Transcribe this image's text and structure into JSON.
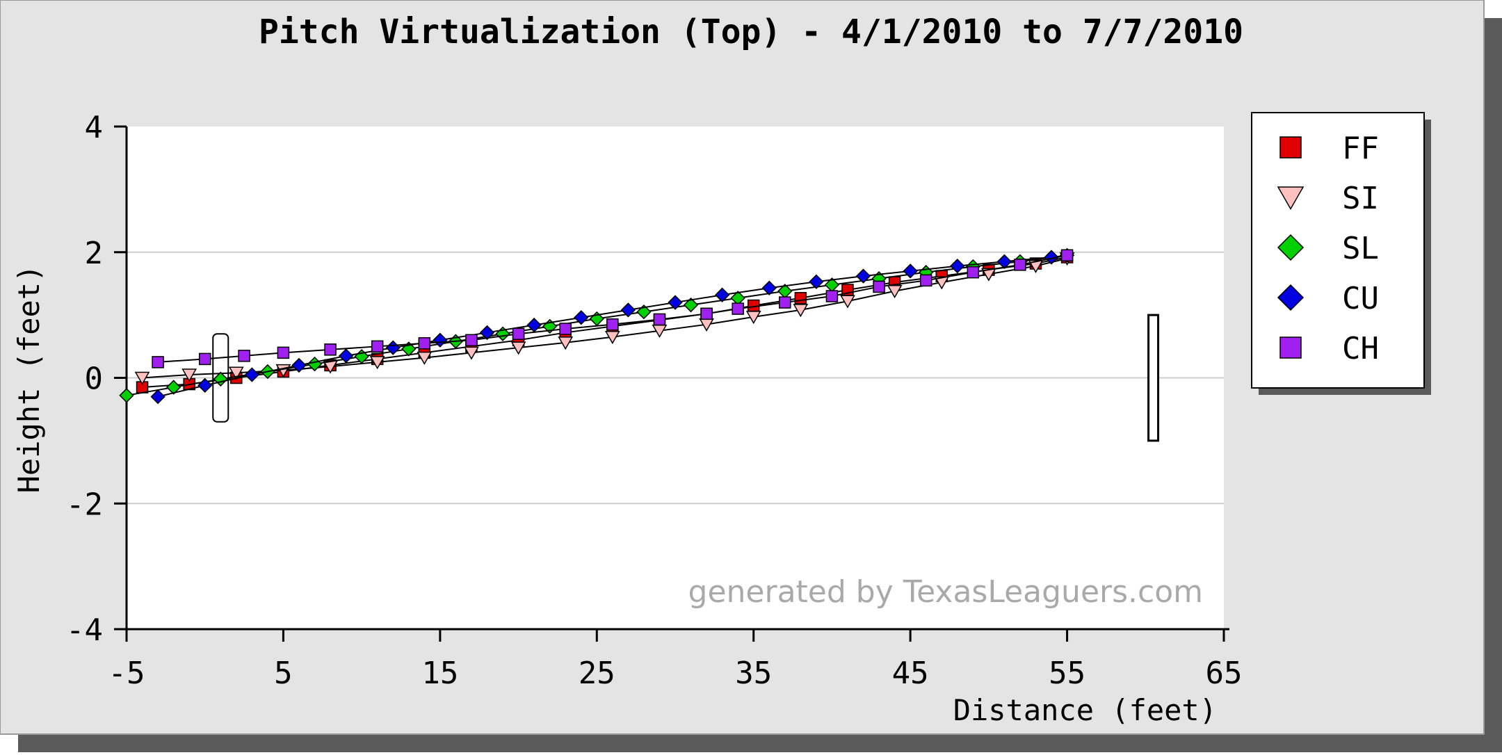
{
  "chart_data": {
    "type": "line",
    "title": "Pitch Virtualization (Top) - 4/1/2010 to 7/7/2010",
    "xlabel": "Distance (feet)",
    "ylabel": "Height (feet)",
    "xlim": [
      -5,
      65
    ],
    "ylim": [
      -4,
      4
    ],
    "x_ticks": [
      -5,
      5,
      15,
      25,
      35,
      45,
      55,
      65
    ],
    "y_ticks": [
      4,
      2,
      0,
      -2,
      -4
    ],
    "grid": "horizontal",
    "legend_position": "right",
    "series": [
      {
        "name": "FF",
        "marker": "square",
        "color": "#e00000",
        "x": [
          -4,
          -1,
          2,
          5,
          8,
          11,
          14,
          17,
          20,
          23,
          26,
          29,
          32,
          35,
          38,
          41,
          44,
          47,
          50,
          53,
          55
        ],
        "y": [
          -0.15,
          -0.1,
          0.0,
          0.1,
          0.2,
          0.3,
          0.4,
          0.5,
          0.6,
          0.72,
          0.82,
          0.92,
          1.02,
          1.15,
          1.27,
          1.4,
          1.52,
          1.62,
          1.72,
          1.82,
          1.92
        ]
      },
      {
        "name": "SI",
        "marker": "triangle-down",
        "color": "#ffc0c0",
        "x": [
          -4,
          -1,
          2,
          5,
          8,
          11,
          14,
          17,
          20,
          23,
          26,
          29,
          32,
          35,
          38,
          41,
          44,
          47,
          50,
          53,
          55
        ],
        "y": [
          0.0,
          0.05,
          0.08,
          0.12,
          0.18,
          0.25,
          0.32,
          0.4,
          0.48,
          0.56,
          0.65,
          0.75,
          0.85,
          0.97,
          1.08,
          1.22,
          1.38,
          1.52,
          1.65,
          1.78,
          1.9
        ]
      },
      {
        "name": "SL",
        "marker": "diamond",
        "color": "#00d000",
        "x": [
          -5,
          -2,
          1,
          4,
          7,
          10,
          13,
          16,
          19,
          22,
          25,
          28,
          31,
          34,
          37,
          40,
          43,
          46,
          49,
          52,
          55
        ],
        "y": [
          -0.28,
          -0.15,
          -0.02,
          0.1,
          0.22,
          0.34,
          0.46,
          0.58,
          0.7,
          0.82,
          0.94,
          1.05,
          1.16,
          1.27,
          1.38,
          1.48,
          1.58,
          1.68,
          1.77,
          1.85,
          1.95
        ]
      },
      {
        "name": "CU",
        "marker": "diamond",
        "color": "#0000e0",
        "x": [
          -3,
          0,
          3,
          6,
          9,
          12,
          15,
          18,
          21,
          24,
          27,
          30,
          33,
          36,
          39,
          42,
          45,
          48,
          51,
          54
        ],
        "y": [
          -0.3,
          -0.12,
          0.05,
          0.2,
          0.35,
          0.48,
          0.6,
          0.72,
          0.84,
          0.96,
          1.08,
          1.2,
          1.32,
          1.43,
          1.53,
          1.62,
          1.7,
          1.78,
          1.85,
          1.92
        ]
      },
      {
        "name": "CH",
        "marker": "square",
        "color": "#a020f0",
        "x": [
          -3,
          0,
          2.5,
          5,
          8,
          11,
          14,
          17,
          20,
          23,
          26,
          29,
          32,
          34,
          37,
          40,
          43,
          46,
          49,
          52,
          55
        ],
        "y": [
          0.25,
          0.3,
          0.35,
          0.4,
          0.45,
          0.5,
          0.55,
          0.6,
          0.7,
          0.78,
          0.85,
          0.93,
          1.02,
          1.1,
          1.2,
          1.3,
          1.45,
          1.55,
          1.68,
          1.8,
          1.95
        ]
      }
    ],
    "reference_shapes": [
      {
        "kind": "batter-box",
        "x": 1,
        "y_range": [
          -0.7,
          0.7
        ]
      },
      {
        "kind": "pitcher-rubber",
        "x": 60.5,
        "y_range": [
          -1,
          1
        ]
      }
    ],
    "annotation": "generated by TexasLeaguers.com"
  },
  "colors": {
    "panel_background": "#e4e4e4",
    "plot_background": "#ffffff",
    "grid": "#cccccc",
    "line": "#000000"
  }
}
